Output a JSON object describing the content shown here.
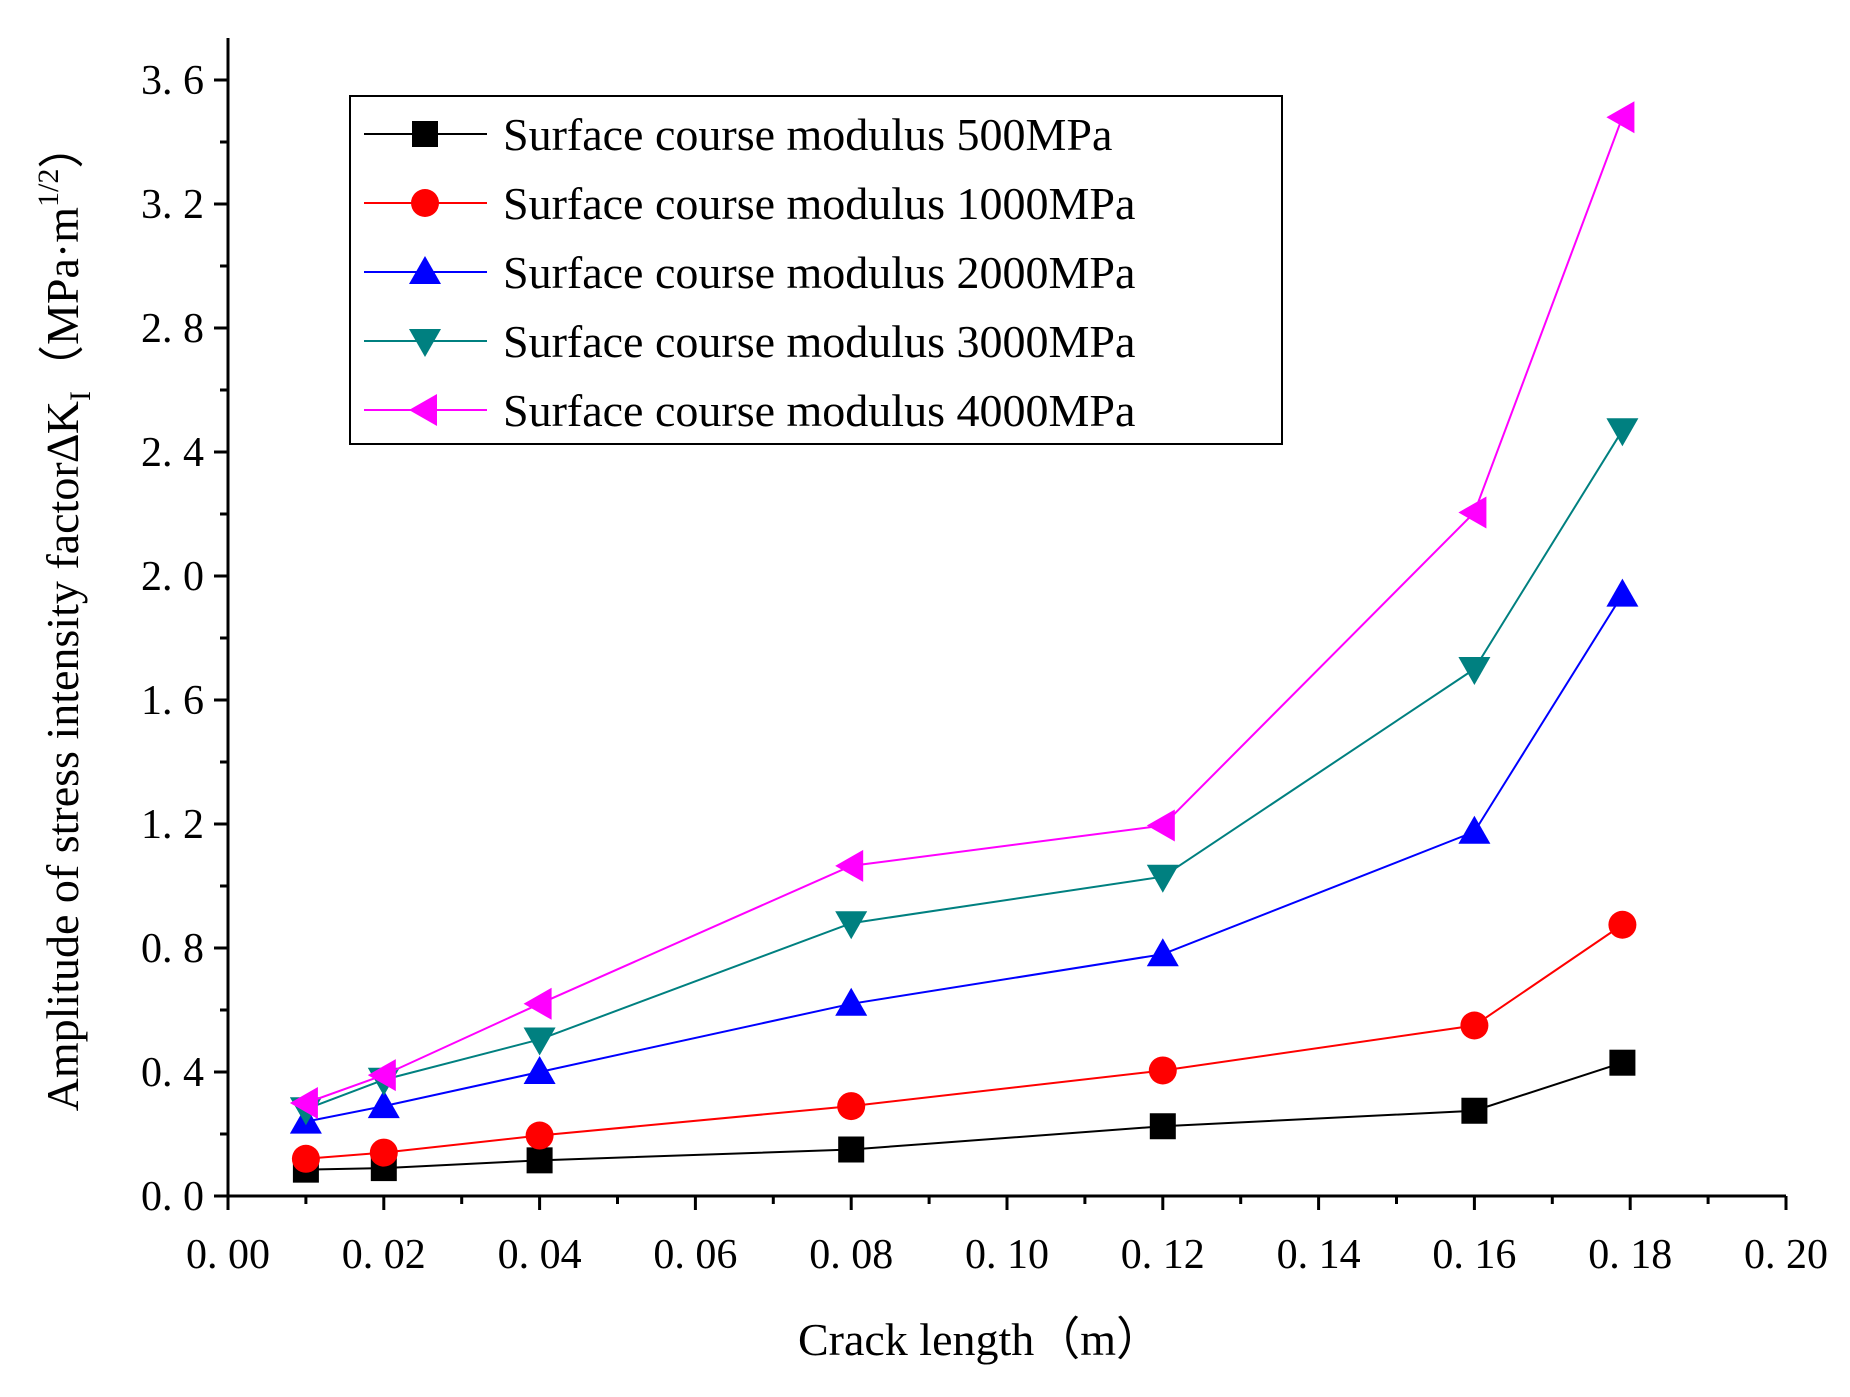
{
  "chart_data": {
    "type": "line",
    "title": "",
    "xlabel": "Crack length（m）",
    "ylabel": {
      "main": "Amplitude of stress intensity factor∆K",
      "subscript": "I",
      "unit_open": "（MPa·m",
      "superscript": "1/2",
      "unit_close": "）"
    },
    "xlim": [
      0.0,
      0.2
    ],
    "ylim": [
      0.0,
      3.7
    ],
    "x_ticks": [
      "0. 00",
      "0. 02",
      "0. 04",
      "0. 06",
      "0. 08",
      "0. 10",
      "0. 12",
      "0. 14",
      "0. 16",
      "0. 18",
      "0. 20"
    ],
    "x_tick_values": [
      0.0,
      0.02,
      0.04,
      0.06,
      0.08,
      0.1,
      0.12,
      0.14,
      0.16,
      0.18,
      0.2
    ],
    "y_ticks": [
      "0. 0",
      "0. 4",
      "0. 8",
      "1. 2",
      "1. 6",
      "2. 0",
      "2. 4",
      "2. 8",
      "3. 2",
      "3. 6"
    ],
    "y_tick_values": [
      0.0,
      0.4,
      0.8,
      1.2,
      1.6,
      2.0,
      2.4,
      2.8,
      3.2,
      3.6
    ],
    "x": [
      0.01,
      0.02,
      0.04,
      0.08,
      0.12,
      0.16,
      0.179
    ],
    "legend_position": "top-left",
    "series": [
      {
        "name": "Surface course modulus 500MPa",
        "color": "#000000",
        "marker": "square",
        "values": [
          0.085,
          0.09,
          0.115,
          0.15,
          0.225,
          0.275,
          0.43
        ]
      },
      {
        "name": "Surface course modulus 1000MPa",
        "color": "#ff0000",
        "marker": "circle",
        "values": [
          0.12,
          0.14,
          0.195,
          0.29,
          0.405,
          0.55,
          0.875
        ]
      },
      {
        "name": "Surface course modulus 2000MPa",
        "color": "#0000ff",
        "marker": "triangle-up",
        "values": [
          0.24,
          0.29,
          0.4,
          0.62,
          0.78,
          1.175,
          1.94
        ]
      },
      {
        "name": "Surface course modulus 3000MPa",
        "color": "#008080",
        "marker": "triangle-down",
        "values": [
          0.28,
          0.375,
          0.505,
          0.88,
          1.03,
          1.7,
          2.47
        ]
      },
      {
        "name": "Surface course modulus 4000MPa",
        "color": "#ff00ff",
        "marker": "triangle-left",
        "values": [
          0.3,
          0.39,
          0.62,
          1.065,
          1.195,
          2.205,
          3.48
        ]
      }
    ]
  }
}
